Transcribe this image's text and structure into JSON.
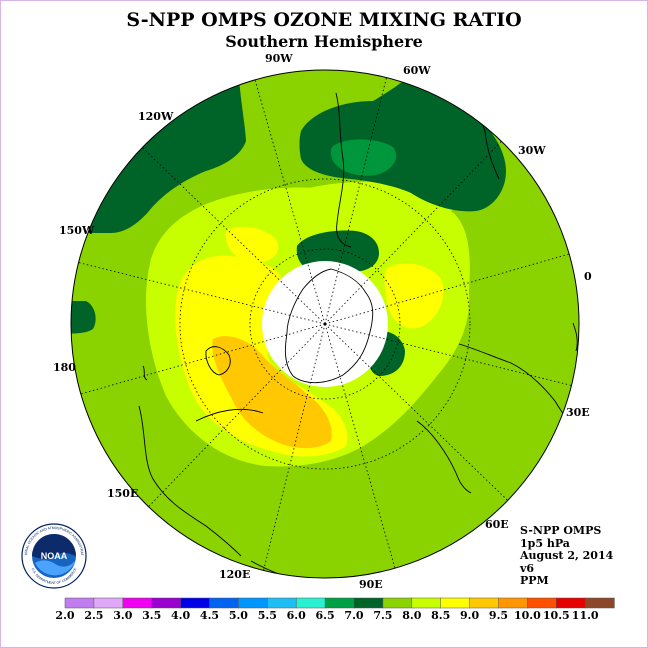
{
  "title": "S-NPP OMPS OZONE MIXING RATIO",
  "subtitle": "Southern Hemisphere",
  "longitude_labels": [
    "90W",
    "60W",
    "30W",
    "0",
    "30E",
    "60E",
    "90E",
    "120E",
    "150E",
    "180",
    "150W",
    "120W"
  ],
  "info": {
    "instrument": "S-NPP OMPS",
    "level": "1p5 hPa",
    "date": "August 2, 2014",
    "version": "v6",
    "units": "PPM"
  },
  "logo": {
    "text": "NOAA",
    "ring_text": "NATIONAL OCEANIC AND ATMOSPHERIC ADMINISTRATION",
    "ring_text_bottom": "U.S. DEPARTMENT OF COMMERCE"
  },
  "colorbar": {
    "values": [
      "2.0",
      "2.5",
      "3.0",
      "3.5",
      "4.0",
      "4.5",
      "5.0",
      "5.5",
      "6.0",
      "6.5",
      "7.0",
      "7.5",
      "8.0",
      "8.5",
      "9.0",
      "9.5",
      "10.0",
      "10.5",
      "11.0"
    ],
    "colors": [
      "#c07df0",
      "#e0a8f8",
      "#f000f0",
      "#9a00d0",
      "#0000e6",
      "#0064f0",
      "#0096ff",
      "#1ebef5",
      "#28f0d0",
      "#00a046",
      "#006428",
      "#8ad200",
      "#c8ff00",
      "#ffff00",
      "#ffc800",
      "#ff9600",
      "#ff5000",
      "#e60000",
      "#8c4628"
    ]
  },
  "map_colors": {
    "c65": "#00963c",
    "c70": "#006428",
    "c75": "#8ad200",
    "c80": "#c8ff00",
    "c85": "#ffff00",
    "c90": "#ffc800",
    "pole": "#ffffff"
  }
}
